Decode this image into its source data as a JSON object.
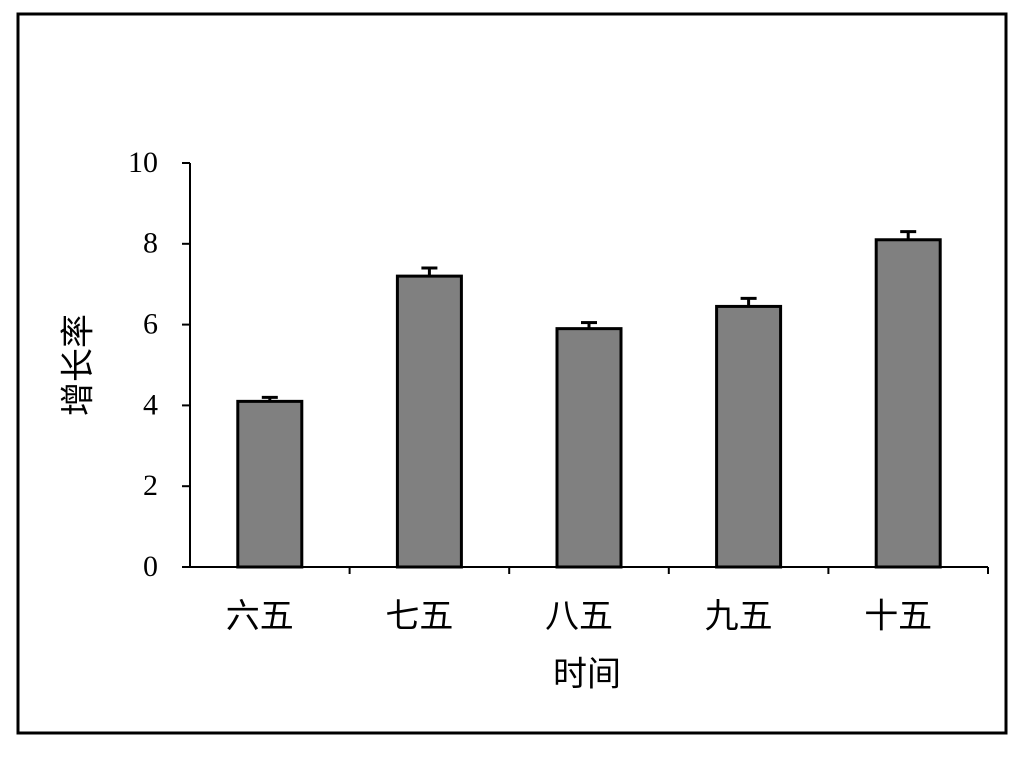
{
  "chart_data": {
    "type": "bar",
    "x_label": "时间",
    "y_label": "增长率",
    "categories": [
      "六五",
      "七五",
      "八五",
      "九五",
      "十五"
    ],
    "values": [
      4.1,
      7.2,
      5.9,
      6.45,
      8.1
    ],
    "errors": [
      0.1,
      0.2,
      0.15,
      0.2,
      0.2
    ],
    "color": "#808080",
    "ylim": [
      0,
      10
    ],
    "yticks": [
      0,
      2,
      4,
      6,
      8,
      10
    ],
    "grid": false
  }
}
